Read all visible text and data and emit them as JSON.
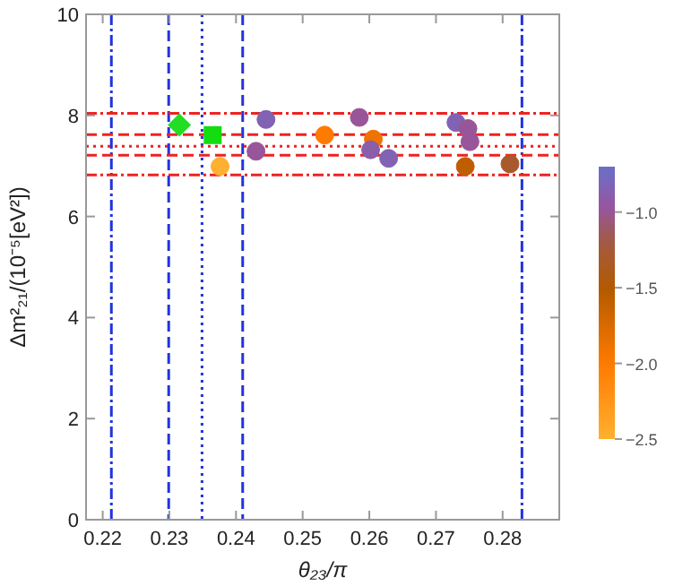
{
  "chart_data": {
    "type": "scatter",
    "xlabel": "θ₂₃/π",
    "ylabel": "Δm²₂₁/(10⁻⁵[eV²])",
    "xlim": [
      0.2175,
      0.2885
    ],
    "xticks": [
      0.22,
      0.23,
      0.24,
      0.25,
      0.26,
      0.27,
      0.28
    ],
    "ylim": [
      0,
      10
    ],
    "yticks": [
      0,
      2,
      4,
      6,
      8,
      10
    ],
    "clim": [
      -2.5,
      -0.7
    ],
    "cticks": [
      {
        "value": -1,
        "label": "−1.0"
      },
      {
        "value": -1.5,
        "label": "−1.5"
      },
      {
        "value": -2,
        "label": "−2.0"
      },
      {
        "value": -2.5,
        "label": "−2.5"
      }
    ],
    "grid": false,
    "ref_lines": [
      {
        "axis": "x",
        "value": 0.2213,
        "color": "#2233dd",
        "line_style": "dashdot"
      },
      {
        "axis": "x",
        "value": 0.2299,
        "color": "#2233dd",
        "line_style": "dashed"
      },
      {
        "axis": "x",
        "value": 0.2349,
        "color": "#2233dd",
        "line_style": "dotted"
      },
      {
        "axis": "x",
        "value": 0.241,
        "color": "#2233dd",
        "line_style": "dashed"
      },
      {
        "axis": "x",
        "value": 0.2829,
        "color": "#2233dd",
        "line_style": "dashdot"
      },
      {
        "axis": "y",
        "value": 8.04,
        "color": "#ee2222",
        "line_style": "dashdot"
      },
      {
        "axis": "y",
        "value": 7.62,
        "color": "#ee2222",
        "line_style": "dashed"
      },
      {
        "axis": "y",
        "value": 7.39,
        "color": "#ee2222",
        "line_style": "dotted"
      },
      {
        "axis": "y",
        "value": 7.21,
        "color": "#ee2222",
        "line_style": "dashed"
      },
      {
        "axis": "y",
        "value": 6.82,
        "color": "#ee2222",
        "line_style": "dashdot"
      }
    ],
    "series": [
      {
        "x": [
          0.2376,
          0.243,
          0.2445,
          0.2533,
          0.2585,
          0.2606,
          0.2602,
          0.2629,
          0.273,
          0.2748,
          0.2751,
          0.2744,
          0.2811
        ],
        "values": [
          6.99,
          7.29,
          7.92,
          7.61,
          7.96,
          7.53,
          7.32,
          7.15,
          7.86,
          7.74,
          7.48,
          6.99,
          7.04
        ],
        "cvalues": [
          -2.5,
          -1.0,
          -0.85,
          -2.0,
          -1.0,
          -1.9,
          -0.9,
          -0.85,
          -0.85,
          -1.0,
          -1.0,
          -1.6,
          -1.3
        ],
        "colors": [
          "#ffb030",
          "#98559a",
          "#8262b3",
          "#ff7a00",
          "#98559a",
          "#f07200",
          "#8a5ea9",
          "#8262b3",
          "#8262b3",
          "#98559a",
          "#98559a",
          "#bf5e00",
          "#a85a2c"
        ],
        "marker": "circle"
      },
      {
        "x": [
          0.2315
        ],
        "values": [
          7.81
        ],
        "color": "#22dd22",
        "marker": "diamond"
      },
      {
        "x": [
          0.2365
        ],
        "values": [
          7.61
        ],
        "color": "#11dd11",
        "marker": "square"
      }
    ]
  }
}
